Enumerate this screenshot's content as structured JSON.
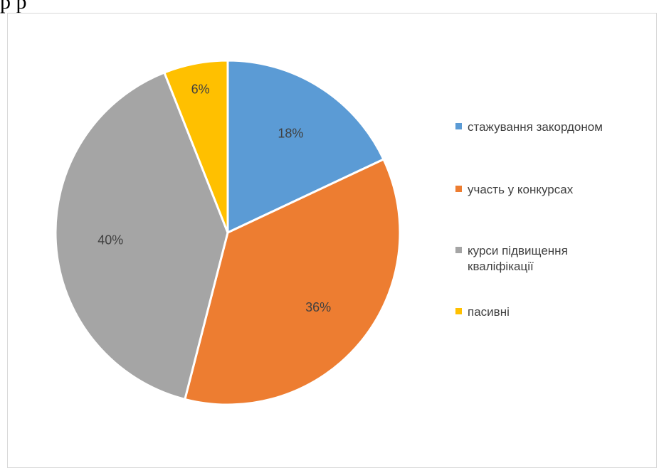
{
  "top_text": "р                                                  р",
  "chart_data": {
    "type": "pie",
    "title": "",
    "legend_position": "right",
    "slices": [
      {
        "label": "стажування закордоном",
        "value": 18,
        "data_label": "18%",
        "color": "#5b9bd5"
      },
      {
        "label": "участь у конкурсах",
        "value": 36,
        "data_label": "36%",
        "color": "#ed7d31"
      },
      {
        "label": "курси підвищення кваліфікації",
        "value": 40,
        "data_label": "40%",
        "color": "#a5a5a5"
      },
      {
        "label": "пасивні",
        "value": 6,
        "data_label": "6%",
        "color": "#ffc000"
      }
    ]
  }
}
